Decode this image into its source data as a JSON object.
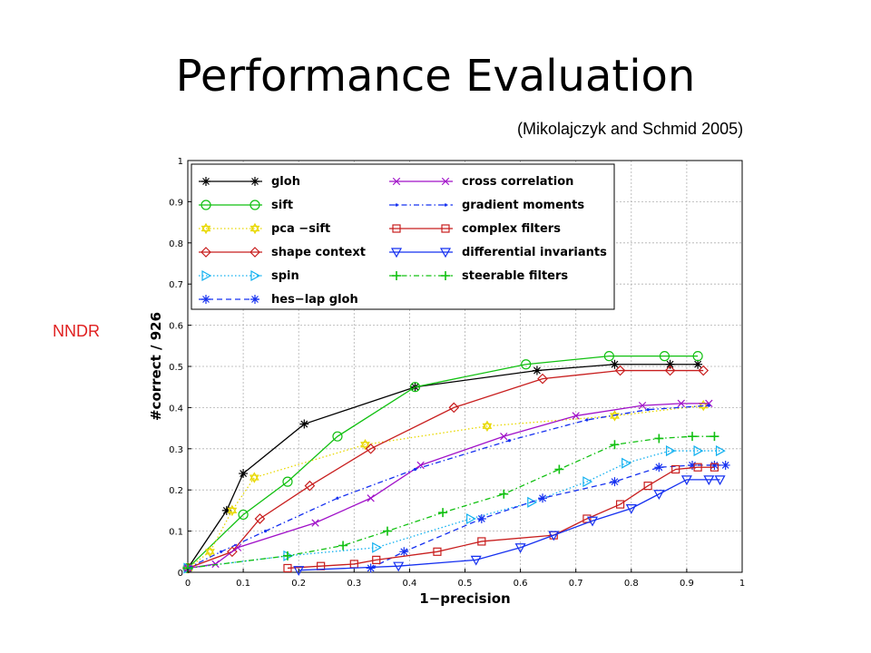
{
  "slide": {
    "title": "Performance Evaluation",
    "citation": "(Mikolajczyk and Schmid 2005)",
    "side_note": "NNDR"
  },
  "chart_data": {
    "type": "line",
    "xlabel": "1−precision",
    "ylabel": "#correct / 926",
    "xlim": [
      0,
      1
    ],
    "ylim": [
      0,
      1
    ],
    "x_ticks": [
      "0",
      "0.1",
      "0.2",
      "0.3",
      "0.4",
      "0.5",
      "0.6",
      "0.7",
      "0.8",
      "0.9",
      "1"
    ],
    "y_ticks": [
      "0",
      "0.1",
      "0.2",
      "0.3",
      "0.4",
      "0.5",
      "0.6",
      "0.7",
      "0.8",
      "0.9",
      "1"
    ],
    "grid": true,
    "legend_position": "top-left",
    "series": [
      {
        "name": "gloh",
        "color": "#000000",
        "dash": "solid",
        "marker": "asterisk",
        "x": [
          0,
          0.07,
          0.1,
          0.21,
          0.41,
          0.63,
          0.77,
          0.87,
          0.92
        ],
        "y": [
          0.01,
          0.15,
          0.24,
          0.36,
          0.45,
          0.49,
          0.505,
          0.505,
          0.505
        ]
      },
      {
        "name": "sift",
        "color": "#10c010",
        "dash": "solid",
        "marker": "circle",
        "x": [
          0,
          0.1,
          0.18,
          0.27,
          0.41,
          0.61,
          0.76,
          0.86,
          0.92
        ],
        "y": [
          0.01,
          0.14,
          0.22,
          0.33,
          0.45,
          0.505,
          0.525,
          0.525,
          0.525
        ]
      },
      {
        "name": "pca −sift",
        "color": "#e8d800",
        "dash": "dotted",
        "marker": "hexagram",
        "x": [
          0,
          0.04,
          0.08,
          0.12,
          0.32,
          0.54,
          0.77,
          0.93
        ],
        "y": [
          0.01,
          0.05,
          0.15,
          0.23,
          0.31,
          0.355,
          0.38,
          0.405
        ]
      },
      {
        "name": "shape context",
        "color": "#c81e1e",
        "dash": "solid",
        "marker": "diamond",
        "x": [
          0,
          0.08,
          0.13,
          0.22,
          0.33,
          0.48,
          0.64,
          0.78,
          0.87,
          0.93
        ],
        "y": [
          0.01,
          0.05,
          0.13,
          0.21,
          0.3,
          0.4,
          0.47,
          0.49,
          0.49,
          0.49
        ]
      },
      {
        "name": "spin",
        "color": "#10b0f0",
        "dash": "dotted",
        "marker": "triangle-right",
        "x": [
          0,
          0.18,
          0.34,
          0.51,
          0.62,
          0.72,
          0.79,
          0.87,
          0.92,
          0.96
        ],
        "y": [
          0.01,
          0.04,
          0.06,
          0.13,
          0.17,
          0.22,
          0.265,
          0.295,
          0.295,
          0.295
        ]
      },
      {
        "name": "hes−lap gloh",
        "color": "#1530f0",
        "dash": "dashed",
        "marker": "asterisk",
        "x": [
          0.33,
          0.39,
          0.53,
          0.64,
          0.77,
          0.85,
          0.91,
          0.95,
          0.97
        ],
        "y": [
          0.01,
          0.05,
          0.13,
          0.18,
          0.22,
          0.255,
          0.26,
          0.26,
          0.26
        ]
      },
      {
        "name": "cross correlation",
        "color": "#a010c8",
        "dash": "solid",
        "marker": "cross",
        "x": [
          0,
          0.05,
          0.09,
          0.23,
          0.33,
          0.42,
          0.57,
          0.7,
          0.82,
          0.89,
          0.94
        ],
        "y": [
          0.01,
          0.02,
          0.06,
          0.12,
          0.18,
          0.26,
          0.33,
          0.38,
          0.405,
          0.41,
          0.41
        ]
      },
      {
        "name": "gradient moments",
        "color": "#1530f0",
        "dash": "dashdot",
        "marker": "point",
        "x": [
          0,
          0.06,
          0.14,
          0.27,
          0.41,
          0.58,
          0.72,
          0.83,
          0.94
        ],
        "y": [
          0.01,
          0.05,
          0.1,
          0.18,
          0.25,
          0.32,
          0.37,
          0.395,
          0.405
        ]
      },
      {
        "name": "complex filters",
        "color": "#c81e1e",
        "dash": "solid",
        "marker": "square",
        "x": [
          0.18,
          0.24,
          0.3,
          0.34,
          0.45,
          0.53,
          0.66,
          0.72,
          0.78,
          0.83,
          0.88,
          0.92,
          0.95
        ],
        "y": [
          0.01,
          0.015,
          0.02,
          0.03,
          0.05,
          0.075,
          0.09,
          0.13,
          0.165,
          0.21,
          0.25,
          0.255,
          0.255
        ]
      },
      {
        "name": "differential invariants",
        "color": "#1530f0",
        "dash": "solid",
        "marker": "triangle-down",
        "x": [
          0.2,
          0.38,
          0.52,
          0.6,
          0.66,
          0.73,
          0.8,
          0.85,
          0.9,
          0.94,
          0.96
        ],
        "y": [
          0.005,
          0.015,
          0.03,
          0.06,
          0.09,
          0.125,
          0.155,
          0.19,
          0.225,
          0.225,
          0.225
        ]
      },
      {
        "name": "steerable filters",
        "color": "#10c010",
        "dash": "dashdot",
        "marker": "plus",
        "x": [
          0,
          0.18,
          0.28,
          0.36,
          0.46,
          0.57,
          0.67,
          0.77,
          0.85,
          0.91,
          0.95
        ],
        "y": [
          0.01,
          0.04,
          0.065,
          0.1,
          0.145,
          0.19,
          0.25,
          0.31,
          0.325,
          0.33,
          0.33
        ]
      }
    ]
  }
}
